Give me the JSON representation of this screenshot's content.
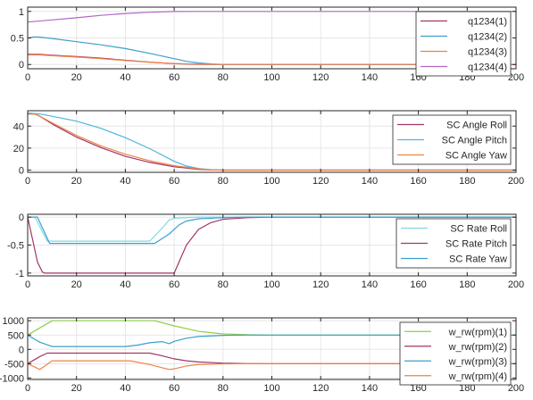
{
  "chart_data": [
    {
      "type": "line",
      "xlim": [
        0,
        200
      ],
      "ylim": [
        -0.08,
        1.08
      ],
      "xticks": [
        0,
        20,
        40,
        60,
        80,
        100,
        120,
        140,
        160,
        180,
        200
      ],
      "yticks": [
        0,
        0.5,
        1
      ],
      "ytick_labels": [
        "0",
        "0.5",
        "1"
      ],
      "grid": true,
      "legend_placement": "top-right",
      "series": [
        {
          "name": "q1234(1)",
          "color": "#a5356a",
          "points": [
            [
              0,
              0.19
            ],
            [
              5,
              0.19
            ],
            [
              10,
              0.175
            ],
            [
              20,
              0.15
            ],
            [
              30,
              0.12
            ],
            [
              40,
              0.08
            ],
            [
              50,
              0.045
            ],
            [
              60,
              0.015
            ],
            [
              70,
              0.003
            ],
            [
              80,
              0
            ],
            [
              200,
              0
            ]
          ]
        },
        {
          "name": "q1234(2)",
          "color": "#3c9fce",
          "points": [
            [
              0,
              0.5
            ],
            [
              3,
              0.52
            ],
            [
              5,
              0.515
            ],
            [
              10,
              0.49
            ],
            [
              20,
              0.43
            ],
            [
              30,
              0.37
            ],
            [
              40,
              0.3
            ],
            [
              50,
              0.21
            ],
            [
              60,
              0.11
            ],
            [
              65,
              0.06
            ],
            [
              70,
              0.03
            ],
            [
              75,
              0.01
            ],
            [
              80,
              0
            ],
            [
              200,
              0
            ]
          ]
        },
        {
          "name": "q1234(3)",
          "color": "#ec8347",
          "points": [
            [
              0,
              0.18
            ],
            [
              5,
              0.18
            ],
            [
              10,
              0.165
            ],
            [
              20,
              0.14
            ],
            [
              30,
              0.11
            ],
            [
              40,
              0.075
            ],
            [
              50,
              0.045
            ],
            [
              60,
              0.02
            ],
            [
              70,
              0.005
            ],
            [
              80,
              0
            ],
            [
              200,
              0
            ]
          ]
        },
        {
          "name": "q1234(4)",
          "color": "#b267c4",
          "points": [
            [
              0,
              0.8
            ],
            [
              10,
              0.84
            ],
            [
              20,
              0.88
            ],
            [
              30,
              0.925
            ],
            [
              40,
              0.96
            ],
            [
              50,
              0.985
            ],
            [
              60,
              0.998
            ],
            [
              70,
              1
            ],
            [
              200,
              1
            ]
          ]
        }
      ]
    },
    {
      "type": "line",
      "xlim": [
        0,
        200
      ],
      "ylim": [
        -2,
        54
      ],
      "xticks": [
        0,
        20,
        40,
        60,
        80,
        100,
        120,
        140,
        160,
        180,
        200
      ],
      "yticks": [
        0,
        20,
        40
      ],
      "ytick_labels": [
        "0",
        "20",
        "40"
      ],
      "grid": true,
      "legend_placement": "top-right",
      "series": [
        {
          "name": "SC Angle Roll",
          "color": "#a5356a",
          "points": [
            [
              0,
              51
            ],
            [
              3,
              51
            ],
            [
              5,
              49
            ],
            [
              10,
              42
            ],
            [
              20,
              30
            ],
            [
              30,
              20.5
            ],
            [
              40,
              12.5
            ],
            [
              50,
              7
            ],
            [
              60,
              3
            ],
            [
              70,
              0.8
            ],
            [
              75,
              0.2
            ],
            [
              80,
              0
            ],
            [
              200,
              0
            ]
          ]
        },
        {
          "name": "SC Angle Pitch",
          "color": "#4fb5de",
          "points": [
            [
              0,
              52
            ],
            [
              5,
              51
            ],
            [
              10,
              49
            ],
            [
              20,
              44.5
            ],
            [
              30,
              38
            ],
            [
              40,
              29.5
            ],
            [
              50,
              19.5
            ],
            [
              60,
              8
            ],
            [
              65,
              3.8
            ],
            [
              70,
              1.5
            ],
            [
              75,
              0.4
            ],
            [
              80,
              0
            ],
            [
              200,
              0
            ]
          ]
        },
        {
          "name": "SC Angle Yaw",
          "color": "#ec8347",
          "points": [
            [
              0,
              51
            ],
            [
              3,
              51
            ],
            [
              5,
              49
            ],
            [
              10,
              43
            ],
            [
              20,
              31.5
            ],
            [
              30,
              22
            ],
            [
              40,
              14.5
            ],
            [
              50,
              8.5
            ],
            [
              60,
              4
            ],
            [
              70,
              1.2
            ],
            [
              75,
              0.3
            ],
            [
              80,
              0
            ],
            [
              200,
              0
            ]
          ]
        }
      ]
    },
    {
      "type": "line",
      "xlim": [
        0,
        200
      ],
      "ylim": [
        -1.05,
        0.05
      ],
      "xticks": [
        0,
        20,
        40,
        60,
        80,
        100,
        120,
        140,
        160,
        180,
        200
      ],
      "yticks": [
        -1,
        -0.5,
        0
      ],
      "ytick_labels": [
        "-1",
        "-0.5",
        "0"
      ],
      "grid": true,
      "legend_placement": "top-right",
      "series": [
        {
          "name": "SC Rate Roll",
          "color": "#80dae0",
          "points": [
            [
              0,
              0
            ],
            [
              3,
              0
            ],
            [
              8,
              -0.43
            ],
            [
              9,
              -0.43
            ],
            [
              10,
              -0.43
            ],
            [
              50,
              -0.43
            ],
            [
              55,
              -0.2
            ],
            [
              58,
              -0.05
            ],
            [
              60,
              -0.02
            ],
            [
              70,
              0
            ],
            [
              200,
              0
            ]
          ]
        },
        {
          "name": "SC Rate Pitch",
          "color": "#a5356a",
          "points": [
            [
              0,
              0
            ],
            [
              2,
              -0.4
            ],
            [
              4,
              -0.8
            ],
            [
              6,
              -0.98
            ],
            [
              7,
              -1
            ],
            [
              60,
              -1
            ],
            [
              62,
              -0.8
            ],
            [
              65,
              -0.5
            ],
            [
              70,
              -0.22
            ],
            [
              75,
              -0.1
            ],
            [
              80,
              -0.04
            ],
            [
              90,
              -0.01
            ],
            [
              100,
              0
            ],
            [
              200,
              0
            ]
          ]
        },
        {
          "name": "SC Rate Yaw",
          "color": "#3c9fce",
          "points": [
            [
              0,
              0
            ],
            [
              4,
              0
            ],
            [
              9,
              -0.47
            ],
            [
              42,
              -0.47
            ],
            [
              52,
              -0.47
            ],
            [
              58,
              -0.3
            ],
            [
              60,
              -0.22
            ],
            [
              62,
              -0.14
            ],
            [
              65,
              -0.07
            ],
            [
              70,
              -0.03
            ],
            [
              80,
              -0.01
            ],
            [
              90,
              0
            ],
            [
              200,
              0
            ]
          ]
        }
      ]
    },
    {
      "type": "line",
      "xlim": [
        0,
        200
      ],
      "ylim": [
        -1050,
        1100
      ],
      "xticks": [
        0,
        20,
        40,
        60,
        80,
        100,
        120,
        140,
        160,
        180,
        200
      ],
      "xtick_labels": [
        "0",
        "20",
        "40",
        "60",
        "80",
        "100",
        "120",
        "140",
        "160",
        "180",
        "200"
      ],
      "yticks": [
        -1000,
        -500,
        0,
        500,
        1000
      ],
      "ytick_labels": [
        "-1000",
        "-500",
        "0",
        "500",
        "1000"
      ],
      "grid": true,
      "legend_placement": "top-right",
      "series": [
        {
          "name": "w_rw(rpm)(1)",
          "color": "#8ccf4a",
          "points": [
            [
              0,
              500
            ],
            [
              5,
              750
            ],
            [
              10,
              1000
            ],
            [
              52,
              1000
            ],
            [
              60,
              820
            ],
            [
              70,
              630
            ],
            [
              80,
              540
            ],
            [
              90,
              510
            ],
            [
              100,
              500
            ],
            [
              200,
              500
            ]
          ]
        },
        {
          "name": "w_rw(rpm)(2)",
          "color": "#a5356a",
          "points": [
            [
              0,
              -500
            ],
            [
              5,
              -250
            ],
            [
              8,
              -130
            ],
            [
              10,
              -130
            ],
            [
              50,
              -130
            ],
            [
              55,
              -220
            ],
            [
              60,
              -330
            ],
            [
              65,
              -400
            ],
            [
              70,
              -440
            ],
            [
              80,
              -480
            ],
            [
              90,
              -495
            ],
            [
              100,
              -500
            ],
            [
              200,
              -500
            ]
          ]
        },
        {
          "name": "w_rw(rpm)(3)",
          "color": "#3c9fce",
          "points": [
            [
              0,
              500
            ],
            [
              5,
              250
            ],
            [
              10,
              100
            ],
            [
              40,
              100
            ],
            [
              45,
              150
            ],
            [
              50,
              230
            ],
            [
              55,
              270
            ],
            [
              58,
              200
            ],
            [
              60,
              280
            ],
            [
              65,
              390
            ],
            [
              70,
              450
            ],
            [
              80,
              490
            ],
            [
              90,
              500
            ],
            [
              200,
              500
            ]
          ]
        },
        {
          "name": "w_rw(rpm)(4)",
          "color": "#ec8347",
          "points": [
            [
              0,
              -500
            ],
            [
              5,
              -700
            ],
            [
              10,
              -400
            ],
            [
              42,
              -400
            ],
            [
              50,
              -530
            ],
            [
              55,
              -640
            ],
            [
              58,
              -700
            ],
            [
              60,
              -680
            ],
            [
              65,
              -580
            ],
            [
              70,
              -530
            ],
            [
              80,
              -505
            ],
            [
              90,
              -500
            ],
            [
              200,
              -500
            ]
          ]
        }
      ]
    }
  ]
}
